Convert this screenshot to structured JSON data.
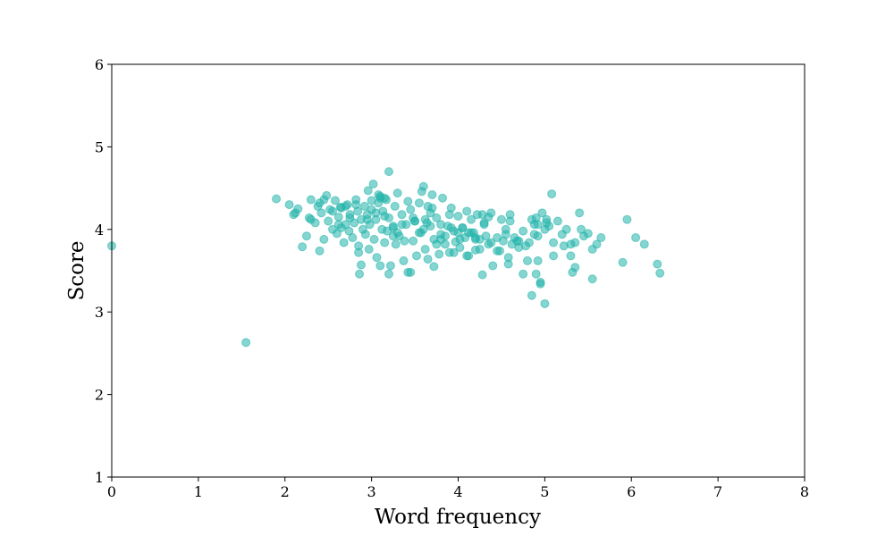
{
  "chart_data": {
    "type": "scatter",
    "title": "",
    "xlabel": "Word frequency",
    "ylabel": "Score",
    "xlim": [
      0,
      8
    ],
    "ylim": [
      1,
      6
    ],
    "xticks": [
      "0",
      "1",
      "2",
      "3",
      "4",
      "5",
      "6",
      "7",
      "8"
    ],
    "yticks": [
      "1",
      "2",
      "3",
      "4",
      "5",
      "6"
    ],
    "grid": false,
    "legend": "none",
    "color": "#20b2aa",
    "series": [
      {
        "x": [
          0.0,
          1.55,
          1.9,
          2.05,
          2.1,
          2.15,
          2.2,
          2.25,
          2.3,
          2.3,
          2.35,
          2.38,
          2.4,
          2.42,
          2.45,
          2.48,
          2.5,
          2.52,
          2.55,
          2.58,
          2.6,
          2.62,
          2.64,
          2.65,
          2.68,
          2.7,
          2.72,
          2.74,
          2.75,
          2.78,
          2.8,
          2.82,
          2.84,
          2.85,
          2.86,
          2.88,
          2.9,
          2.92,
          2.93,
          2.95,
          2.96,
          2.97,
          2.98,
          3.0,
          3.02,
          3.03,
          3.05,
          3.06,
          3.08,
          3.1,
          3.1,
          3.12,
          3.13,
          3.15,
          3.17,
          3.18,
          3.2,
          3.2,
          3.22,
          3.25,
          3.27,
          3.28,
          3.3,
          3.32,
          3.35,
          3.37,
          3.4,
          3.42,
          3.45,
          3.48,
          3.5,
          3.52,
          3.55,
          3.57,
          3.6,
          3.62,
          3.64,
          3.65,
          3.68,
          3.7,
          3.72,
          3.75,
          3.78,
          3.8,
          3.82,
          3.85,
          3.88,
          3.9,
          3.92,
          3.95,
          3.97,
          4.0,
          4.02,
          4.05,
          4.08,
          4.1,
          4.12,
          4.15,
          4.18,
          4.2,
          4.22,
          4.25,
          4.28,
          4.3,
          4.32,
          4.35,
          4.38,
          4.4,
          4.45,
          4.5,
          4.52,
          4.55,
          4.58,
          4.6,
          4.62,
          4.65,
          4.7,
          4.75,
          4.8,
          4.82,
          4.85,
          4.88,
          4.9,
          4.92,
          4.95,
          4.97,
          5.0,
          5.02,
          5.05,
          5.08,
          5.1,
          5.15,
          5.2,
          5.25,
          5.3,
          5.32,
          5.35,
          5.4,
          5.45,
          5.5,
          5.55,
          5.6,
          5.65,
          5.9,
          5.95,
          6.05,
          6.15,
          6.3,
          6.33,
          2.12,
          2.28,
          2.45,
          2.62,
          2.7,
          2.88,
          3.08,
          3.15,
          3.3,
          3.45,
          3.58,
          3.68,
          3.72,
          3.85,
          3.95,
          4.0,
          4.1,
          4.2,
          4.25,
          4.35,
          4.48,
          4.58,
          4.7,
          4.78,
          4.92,
          5.1,
          5.35,
          4.2,
          3.2,
          3.0,
          2.85,
          2.95,
          3.05,
          3.15,
          3.25,
          3.35,
          3.5,
          3.6,
          3.7,
          3.8,
          3.9,
          4.05,
          4.15,
          4.3,
          4.45,
          4.6,
          4.75,
          4.88,
          5.0,
          2.75,
          2.55,
          2.4,
          3.38,
          3.48,
          3.65,
          3.75,
          3.92,
          4.12,
          4.38,
          4.55,
          4.68,
          4.85,
          5.22,
          5.42,
          5.55,
          2.65,
          2.82,
          3.1,
          3.25,
          3.42,
          3.55,
          3.62,
          3.8,
          4.02,
          4.28,
          4.92,
          5.02,
          4.95,
          4.9,
          5.3
        ],
        "y": [
          3.8,
          2.63,
          4.37,
          4.3,
          4.18,
          4.25,
          3.79,
          3.92,
          4.12,
          4.36,
          4.08,
          4.28,
          3.74,
          4.2,
          3.88,
          4.41,
          4.1,
          4.24,
          4.0,
          4.35,
          3.95,
          4.15,
          4.27,
          4.02,
          3.84,
          4.06,
          4.3,
          3.98,
          4.18,
          3.9,
          4.08,
          4.36,
          4.22,
          3.8,
          3.46,
          4.12,
          4.0,
          4.28,
          3.94,
          4.18,
          4.47,
          3.76,
          4.06,
          4.24,
          4.55,
          3.88,
          4.12,
          3.66,
          4.32,
          4.4,
          3.56,
          4.0,
          4.22,
          3.84,
          4.36,
          3.98,
          4.7,
          4.14,
          3.56,
          4.02,
          4.28,
          3.82,
          4.44,
          3.92,
          4.18,
          3.62,
          4.06,
          3.48,
          4.24,
          3.86,
          4.1,
          3.68,
          4.32,
          3.96,
          4.52,
          3.76,
          4.08,
          3.64,
          4.2,
          4.42,
          3.88,
          4.14,
          3.7,
          3.94,
          4.38,
          3.82,
          4.04,
          3.72,
          4.26,
          3.98,
          3.85,
          4.16,
          3.78,
          4.02,
          3.9,
          4.22,
          3.68,
          4.12,
          3.96,
          3.88,
          4.18,
          3.76,
          3.45,
          4.06,
          3.92,
          3.82,
          4.2,
          3.56,
          3.74,
          4.12,
          3.86,
          3.94,
          3.58,
          4.18,
          3.82,
          3.9,
          3.78,
          3.46,
          3.62,
          3.84,
          3.2,
          3.94,
          4.14,
          3.62,
          3.36,
          4.2,
          3.1,
          4.12,
          4.04,
          4.43,
          3.84,
          4.1,
          3.94,
          4.0,
          3.68,
          3.48,
          3.84,
          4.2,
          3.92,
          3.95,
          3.4,
          3.82,
          3.9,
          3.6,
          4.12,
          3.9,
          3.82,
          3.58,
          3.47,
          4.2,
          4.14,
          4.36,
          4.06,
          4.28,
          3.57,
          4.42,
          4.38,
          3.96,
          3.48,
          4.46,
          4.04,
          3.55,
          3.92,
          3.72,
          3.96,
          3.68,
          3.9,
          3.88,
          4.15,
          3.74,
          3.66,
          3.86,
          3.8,
          3.92,
          3.68,
          3.54,
          3.75,
          3.46,
          4.35,
          3.72,
          4.12,
          4.2,
          4.16,
          3.92,
          4.06,
          4.1,
          4.0,
          4.26,
          3.88,
          4.18,
          4.02,
          3.96,
          4.08,
          3.9,
          4.1,
          3.98,
          4.06,
          4.0,
          4.14,
          4.22,
          4.32,
          3.86,
          4.14,
          4.28,
          3.82,
          4.02,
          3.96,
          3.84,
          4.0,
          3.86,
          4.12,
          3.8,
          4.0,
          3.76,
          4.26,
          4.3,
          4.38,
          4.04,
          4.34,
          3.96,
          4.12,
          4.06,
          3.88,
          4.18,
          4.06,
          4.08,
          3.34,
          3.46,
          3.82
        ]
      }
    ]
  }
}
